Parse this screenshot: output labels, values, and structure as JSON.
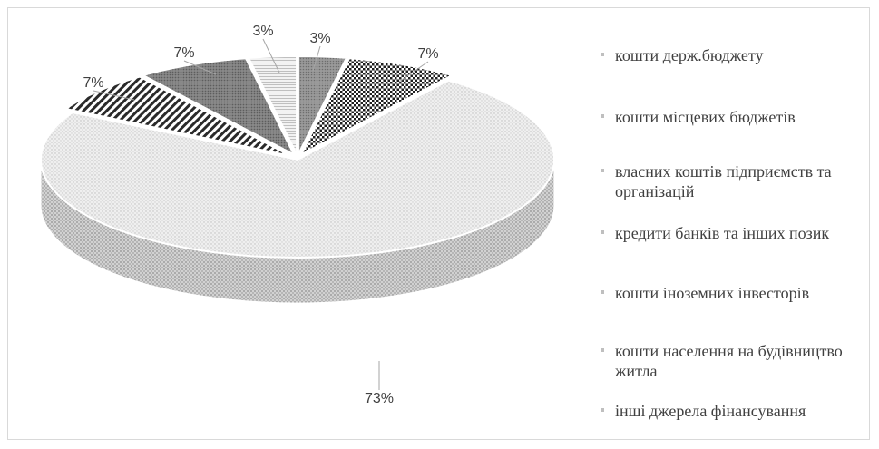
{
  "chart_data": {
    "type": "pie",
    "slices": [
      {
        "label": "кошти держ.бюджету",
        "value": 3,
        "label_text": "3%"
      },
      {
        "label": "кошти місцевих бюджетів",
        "value": 7,
        "label_text": "7%"
      },
      {
        "label": "власних коштів підприємств та організацій",
        "value": 73,
        "label_text": "73%"
      },
      {
        "label": "кредити банків та інших позик",
        "value": 7,
        "label_text": "7%"
      },
      {
        "label": "кошти іноземних інвесторів",
        "value": 7,
        "label_text": "7%"
      },
      {
        "label": "кошти населення на будівництво житла",
        "value": 3,
        "label_text": "3%"
      },
      {
        "label": "інші джерела фінансування",
        "value": 0,
        "label_text": ""
      }
    ],
    "legend_position": "right",
    "three_d": true
  },
  "colors": {
    "label_text": "#404040",
    "leader_line": "#a6a6a6",
    "border": "#d9d9d9"
  }
}
